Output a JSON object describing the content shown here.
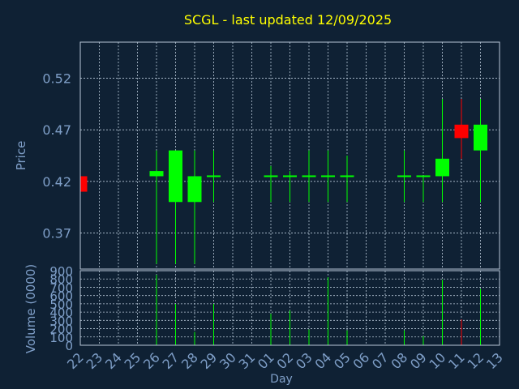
{
  "chart_data": {
    "type": "candlestick",
    "title": "SCGL - last updated 12/09/2025",
    "ylabel": "Price",
    "volume_label": "Volume (0000)",
    "xlabel": "Day",
    "ylim": [
      0.335,
      0.555
    ],
    "volume_ylim": [
      0,
      900
    ],
    "yticks": [
      "0.37",
      "0.42",
      "0.47",
      "0.52"
    ],
    "volume_yticks": [
      "0",
      "100",
      "200",
      "300",
      "400",
      "500",
      "600",
      "700",
      "800",
      "900"
    ],
    "days": [
      "22",
      "23",
      "24",
      "25",
      "26",
      "27",
      "28",
      "29",
      "30",
      "31",
      "01",
      "02",
      "03",
      "04",
      "05",
      "06",
      "07",
      "08",
      "09",
      "10",
      "11",
      "12",
      "13"
    ],
    "candles": [
      {
        "day": "22",
        "open": 0.425,
        "close": 0.41,
        "high": 0.425,
        "low": 0.41,
        "volume": 0
      },
      {
        "day": "26",
        "open": 0.425,
        "close": 0.43,
        "high": 0.45,
        "low": 0.34,
        "volume": 850
      },
      {
        "day": "27",
        "open": 0.4,
        "close": 0.45,
        "high": 0.45,
        "low": 0.34,
        "volume": 500
      },
      {
        "day": "28",
        "open": 0.4,
        "close": 0.425,
        "high": 0.45,
        "low": 0.34,
        "volume": 160
      },
      {
        "day": "29",
        "open": 0.425,
        "close": 0.425,
        "high": 0.45,
        "low": 0.4,
        "volume": 500
      },
      {
        "day": "01",
        "open": 0.425,
        "close": 0.425,
        "high": 0.435,
        "low": 0.4,
        "volume": 380
      },
      {
        "day": "02",
        "open": 0.425,
        "close": 0.425,
        "high": 0.43,
        "low": 0.4,
        "volume": 420
      },
      {
        "day": "03",
        "open": 0.425,
        "close": 0.425,
        "high": 0.45,
        "low": 0.4,
        "volume": 190
      },
      {
        "day": "04",
        "open": 0.425,
        "close": 0.425,
        "high": 0.45,
        "low": 0.4,
        "volume": 820
      },
      {
        "day": "05",
        "open": 0.425,
        "close": 0.425,
        "high": 0.445,
        "low": 0.4,
        "volume": 180
      },
      {
        "day": "08",
        "open": 0.425,
        "close": 0.425,
        "high": 0.45,
        "low": 0.4,
        "volume": 180
      },
      {
        "day": "09",
        "open": 0.425,
        "close": 0.425,
        "high": 0.425,
        "low": 0.4,
        "volume": 110
      },
      {
        "day": "10",
        "open": 0.425,
        "close": 0.442,
        "high": 0.5,
        "low": 0.4,
        "volume": 790
      },
      {
        "day": "11",
        "open": 0.475,
        "close": 0.462,
        "high": 0.5,
        "low": 0.442,
        "volume": 310
      },
      {
        "day": "12",
        "open": 0.45,
        "close": 0.475,
        "high": 0.5,
        "low": 0.4,
        "volume": 680
      }
    ],
    "colors": {
      "background": "#0f2134",
      "up": "#00ff00",
      "down": "#ff0000",
      "grid": "#b8c8d8",
      "title": "#ffff00",
      "axis_text": "#7f9fc8"
    }
  }
}
